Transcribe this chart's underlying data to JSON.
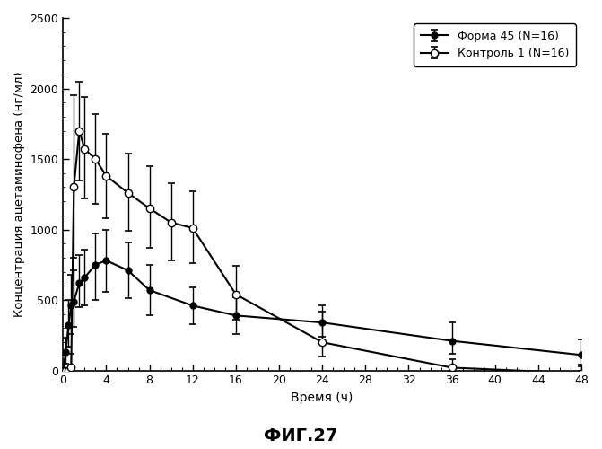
{
  "title": "ФИГ.27",
  "xlabel": "Время (ч)",
  "ylabel": "Концентрация ацетаминофена (нг/мл)",
  "xlim": [
    0,
    48
  ],
  "ylim": [
    0,
    2500
  ],
  "xticks": [
    0,
    4,
    8,
    12,
    16,
    20,
    24,
    28,
    32,
    36,
    40,
    44,
    48
  ],
  "yticks": [
    0,
    500,
    1000,
    1500,
    2000,
    2500
  ],
  "legend1": "Форма 45 (N=16)",
  "legend2": "Контроль 1 (N=16)",
  "series1_x": [
    0,
    0.25,
    0.5,
    0.75,
    1,
    1.5,
    2,
    3,
    4,
    6,
    8,
    12,
    16,
    24,
    36,
    48
  ],
  "series1_y": [
    0,
    130,
    320,
    460,
    490,
    620,
    660,
    750,
    780,
    710,
    570,
    460,
    390,
    340,
    210,
    110
  ],
  "series1_yerr_lo": [
    0,
    80,
    150,
    200,
    180,
    170,
    200,
    250,
    220,
    200,
    180,
    130,
    130,
    100,
    90,
    80
  ],
  "series1_yerr_hi": [
    0,
    100,
    180,
    220,
    220,
    200,
    200,
    220,
    220,
    200,
    180,
    130,
    130,
    120,
    130,
    110
  ],
  "series2_x": [
    0,
    0.25,
    0.5,
    0.75,
    1,
    1.5,
    2,
    3,
    4,
    6,
    8,
    10,
    12,
    16,
    24,
    36,
    48
  ],
  "series2_y": [
    0,
    0,
    0,
    20,
    1300,
    1700,
    1570,
    1500,
    1380,
    1260,
    1150,
    1050,
    1010,
    540,
    200,
    20,
    -20
  ],
  "series2_yerr_lo": [
    0,
    0,
    0,
    20,
    500,
    350,
    350,
    320,
    300,
    270,
    280,
    270,
    250,
    180,
    100,
    15,
    25
  ],
  "series2_yerr_hi": [
    0,
    0,
    0,
    100,
    650,
    350,
    370,
    320,
    300,
    280,
    300,
    280,
    260,
    200,
    220,
    60,
    60
  ],
  "line_color": "#000000",
  "bg_color": "#ffffff"
}
